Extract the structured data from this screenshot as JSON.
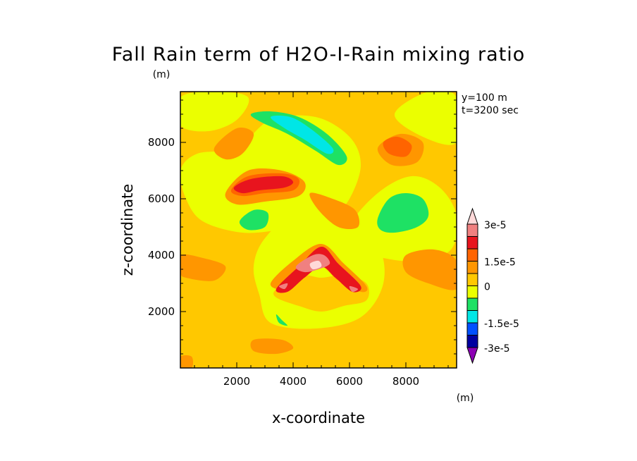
{
  "chart_data": {
    "type": "filled-contour",
    "title": "Fall Rain term of H2O-I-Rain mixing ratio",
    "units_label": "(m)",
    "xlabel": "x-coordinate",
    "ylabel": "z-coordinate",
    "xlim": [
      0,
      9800
    ],
    "ylim": [
      0,
      9800
    ],
    "xticks": [
      2000,
      4000,
      6000,
      8000
    ],
    "yticks": [
      2000,
      4000,
      6000,
      8000
    ],
    "info": [
      "y=100 m",
      "t=3200 sec"
    ],
    "background_level_color": "#ffc800",
    "colorbar": {
      "labels": [
        "3e-5",
        "1.5e-5",
        "0",
        "-1.5e-5",
        "-3e-5"
      ],
      "units": "(m)",
      "levels_top_to_bottom": [
        {
          "color": "#ffd9d9",
          "label": "3e-5"
        },
        {
          "color": "#f08080",
          "label": ""
        },
        {
          "color": "#e8141e",
          "label": ""
        },
        {
          "color": "#ff6400",
          "label": "1.5e-5"
        },
        {
          "color": "#ff9600",
          "label": ""
        },
        {
          "color": "#ffc800",
          "label": "0"
        },
        {
          "color": "#ebff00",
          "label": ""
        },
        {
          "color": "#1ee164",
          "label": ""
        },
        {
          "color": "#00e6e6",
          "label": "-1.5e-5"
        },
        {
          "color": "#0050ff",
          "label": ""
        },
        {
          "color": "#0000a0",
          "label": ""
        },
        {
          "color": "#8c00b4",
          "label": "-3e-5"
        }
      ]
    },
    "regions": [
      {
        "level": "#ebff00",
        "pts": [
          [
            2000,
            7800
          ],
          [
            3200,
            8800
          ],
          [
            4800,
            8900
          ],
          [
            6000,
            8200
          ],
          [
            6400,
            7200
          ],
          [
            6000,
            6000
          ],
          [
            5400,
            5400
          ],
          [
            4600,
            5000
          ],
          [
            3600,
            4900
          ],
          [
            2200,
            4800
          ],
          [
            800,
            5200
          ],
          [
            200,
            6000
          ],
          [
            0,
            7000
          ],
          [
            600,
            7600
          ]
        ]
      },
      {
        "level": "#ebff00",
        "pts": [
          [
            6000,
            5000
          ],
          [
            7000,
            6200
          ],
          [
            8200,
            6800
          ],
          [
            9200,
            6400
          ],
          [
            9800,
            5400
          ],
          [
            9600,
            4200
          ],
          [
            8400,
            3800
          ],
          [
            7200,
            3900
          ],
          [
            6400,
            4200
          ]
        ]
      },
      {
        "level": "#ebff00",
        "pts": [
          [
            0,
            9600
          ],
          [
            1200,
            9800
          ],
          [
            2400,
            9600
          ],
          [
            2000,
            8800
          ],
          [
            1000,
            8400
          ],
          [
            0,
            8600
          ]
        ]
      },
      {
        "level": "#ebff00",
        "pts": [
          [
            3000,
            4600
          ],
          [
            4200,
            5600
          ],
          [
            5800,
            5400
          ],
          [
            7000,
            4400
          ],
          [
            7200,
            3000
          ],
          [
            6400,
            1800
          ],
          [
            4800,
            1400
          ],
          [
            3200,
            1600
          ],
          [
            2800,
            2600
          ],
          [
            2600,
            3600
          ]
        ]
      },
      {
        "level": "#ebff00",
        "pts": [
          [
            7600,
            9000
          ],
          [
            8800,
            9800
          ],
          [
            9800,
            9600
          ],
          [
            9800,
            8000
          ],
          [
            8600,
            8200
          ]
        ]
      },
      {
        "level": "#ff9600",
        "pts": [
          [
            1200,
            7800
          ],
          [
            2000,
            8500
          ],
          [
            2600,
            8300
          ],
          [
            2200,
            7600
          ],
          [
            1600,
            7400
          ]
        ]
      },
      {
        "level": "#ff9600",
        "pts": [
          [
            1600,
            6200
          ],
          [
            2400,
            7000
          ],
          [
            3600,
            7000
          ],
          [
            4400,
            6600
          ],
          [
            4200,
            6100
          ],
          [
            3000,
            5900
          ],
          [
            2000,
            5800
          ]
        ]
      },
      {
        "level": "#ff9600",
        "pts": [
          [
            4600,
            6200
          ],
          [
            5400,
            6000
          ],
          [
            6200,
            5600
          ],
          [
            6300,
            5000
          ],
          [
            5600,
            5000
          ],
          [
            4900,
            5600
          ]
        ]
      },
      {
        "level": "#ff9600",
        "pts": [
          [
            7000,
            7800
          ],
          [
            7800,
            8300
          ],
          [
            8600,
            8000
          ],
          [
            8400,
            7300
          ],
          [
            7500,
            7200
          ]
        ]
      },
      {
        "level": "#ff9600",
        "pts": [
          [
            0,
            4000
          ],
          [
            800,
            3900
          ],
          [
            1600,
            3600
          ],
          [
            1200,
            3100
          ],
          [
            200,
            3200
          ],
          [
            0,
            3400
          ]
        ]
      },
      {
        "level": "#ff9600",
        "pts": [
          [
            8000,
            4000
          ],
          [
            9000,
            4200
          ],
          [
            9800,
            3800
          ],
          [
            9800,
            2800
          ],
          [
            8800,
            3000
          ],
          [
            8000,
            3400
          ]
        ]
      },
      {
        "level": "#ff9600",
        "pts": [
          [
            2600,
            1000
          ],
          [
            3600,
            1000
          ],
          [
            4000,
            700
          ],
          [
            3400,
            500
          ],
          [
            2600,
            600
          ]
        ]
      },
      {
        "level": "#ff9600",
        "pts": [
          [
            0,
            400
          ],
          [
            400,
            400
          ],
          [
            400,
            0
          ],
          [
            0,
            0
          ]
        ]
      },
      {
        "level": "#ffc800",
        "pts": [
          [
            3400,
            2800
          ],
          [
            4200,
            3300
          ],
          [
            5000,
            3200
          ],
          [
            5800,
            3300
          ],
          [
            6600,
            3000
          ],
          [
            6600,
            2400
          ],
          [
            5800,
            2200
          ],
          [
            5000,
            2000
          ],
          [
            4200,
            2200
          ],
          [
            3400,
            2500
          ]
        ]
      },
      {
        "level": "#ff9600",
        "pts": [
          [
            3200,
            3000
          ],
          [
            4000,
            3800
          ],
          [
            5000,
            4400
          ],
          [
            5800,
            3700
          ],
          [
            6600,
            2900
          ],
          [
            6400,
            2700
          ],
          [
            5600,
            3100
          ],
          [
            5000,
            3600
          ],
          [
            4400,
            3300
          ],
          [
            3700,
            2800
          ]
        ]
      },
      {
        "level": "#ff6400",
        "pts": [
          [
            7200,
            8000
          ],
          [
            7700,
            8200
          ],
          [
            8200,
            7900
          ],
          [
            8000,
            7500
          ],
          [
            7400,
            7600
          ]
        ]
      },
      {
        "level": "#ff6400",
        "pts": [
          [
            1800,
            6300
          ],
          [
            2400,
            6800
          ],
          [
            3600,
            6900
          ],
          [
            4200,
            6700
          ],
          [
            4000,
            6300
          ],
          [
            3000,
            6200
          ],
          [
            2200,
            6100
          ]
        ]
      },
      {
        "level": "#e8141e",
        "pts": [
          [
            1900,
            6400
          ],
          [
            2500,
            6700
          ],
          [
            3600,
            6800
          ],
          [
            4000,
            6600
          ],
          [
            3700,
            6400
          ],
          [
            2800,
            6300
          ],
          [
            2200,
            6200
          ]
        ]
      },
      {
        "level": "#e8141e",
        "pts": [
          [
            3400,
            2800
          ],
          [
            4200,
            3600
          ],
          [
            5000,
            4300
          ],
          [
            5600,
            3700
          ],
          [
            6400,
            2900
          ],
          [
            6100,
            2700
          ],
          [
            5500,
            3200
          ],
          [
            5000,
            3600
          ],
          [
            4400,
            3200
          ],
          [
            3800,
            2700
          ]
        ]
      },
      {
        "level": "#f08080",
        "pts": [
          [
            4100,
            3600
          ],
          [
            4700,
            4000
          ],
          [
            5100,
            4000
          ],
          [
            5300,
            3700
          ],
          [
            4900,
            3500
          ],
          [
            4400,
            3400
          ]
        ]
      },
      {
        "level": "#f08080",
        "pts": [
          [
            6000,
            2900
          ],
          [
            6300,
            2800
          ],
          [
            6100,
            2700
          ]
        ]
      },
      {
        "level": "#f08080",
        "pts": [
          [
            3500,
            2900
          ],
          [
            3800,
            3000
          ],
          [
            3700,
            2800
          ]
        ]
      },
      {
        "level": "#ffd9d9",
        "pts": [
          [
            4600,
            3700
          ],
          [
            4900,
            3800
          ],
          [
            5000,
            3600
          ],
          [
            4700,
            3500
          ]
        ]
      },
      {
        "level": "#1ee164",
        "pts": [
          [
            2500,
            9000
          ],
          [
            3200,
            9100
          ],
          [
            4200,
            8900
          ],
          [
            5200,
            8300
          ],
          [
            5900,
            7500
          ],
          [
            5600,
            7200
          ],
          [
            4800,
            7700
          ],
          [
            3800,
            8300
          ],
          [
            2900,
            8700
          ]
        ]
      },
      {
        "level": "#00e6e6",
        "pts": [
          [
            3200,
            8900
          ],
          [
            3900,
            8900
          ],
          [
            4600,
            8500
          ],
          [
            5400,
            7800
          ],
          [
            5200,
            7600
          ],
          [
            4400,
            8100
          ],
          [
            3700,
            8500
          ]
        ]
      },
      {
        "level": "#1ee164",
        "pts": [
          [
            7000,
            5300
          ],
          [
            7400,
            6000
          ],
          [
            8000,
            6200
          ],
          [
            8600,
            6000
          ],
          [
            8800,
            5400
          ],
          [
            8400,
            5000
          ],
          [
            7600,
            4800
          ],
          [
            7100,
            4900
          ]
        ]
      },
      {
        "level": "#1ee164",
        "pts": [
          [
            2100,
            5200
          ],
          [
            2600,
            5600
          ],
          [
            3100,
            5500
          ],
          [
            3000,
            5000
          ],
          [
            2400,
            4900
          ]
        ]
      },
      {
        "level": "#1ee164",
        "pts": [
          [
            3400,
            1900
          ],
          [
            3600,
            1700
          ],
          [
            3800,
            1500
          ],
          [
            3500,
            1600
          ]
        ]
      }
    ]
  }
}
